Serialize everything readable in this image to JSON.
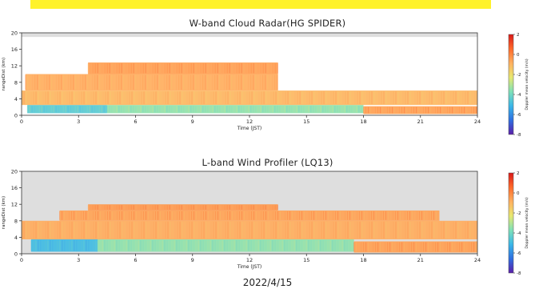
{
  "banner": {
    "text": ""
  },
  "date": "2022/4/15",
  "colors": {
    "missing": "#dedede",
    "colormap": [
      "#5a1ea8",
      "#2f6fe0",
      "#3ab7e8",
      "#7fe0b8",
      "#e8e870",
      "#ffb060",
      "#ff6a2a",
      "#d81818"
    ]
  },
  "chart_data": [
    {
      "type": "heatmap",
      "title": "W-band Cloud Radar(HG SPIDER)",
      "xlabel": "Time (JST)",
      "ylabel": "rangeDist (km)",
      "x_ticks": [
        "0",
        "3",
        "6",
        "9",
        "12",
        "15",
        "18",
        "21",
        "24"
      ],
      "y_ticks": [
        "0",
        "4",
        "8",
        "12",
        "16",
        "20"
      ],
      "xlim": [
        0,
        24
      ],
      "ylim": [
        0,
        20
      ],
      "colorbar": {
        "label": "Doppler mean velocity (m/s)",
        "ticks": [
          "2",
          "0",
          "-2",
          "-4",
          "-6",
          "-8"
        ],
        "range": [
          -8,
          2
        ]
      },
      "layers": [
        {
          "x": [
            0.3,
            4.5
          ],
          "y": [
            0.5,
            2.5
          ],
          "value": -4.5
        },
        {
          "x": [
            4.5,
            18.0
          ],
          "y": [
            0.5,
            2.5
          ],
          "value": -3.5
        },
        {
          "x": [
            18.0,
            24.0
          ],
          "y": [
            0.3,
            2.2
          ],
          "value": -0.5
        },
        {
          "x": [
            0.0,
            24.0
          ],
          "y": [
            2.5,
            6.0
          ],
          "value": -1.0
        },
        {
          "x": [
            0.2,
            13.5
          ],
          "y": [
            6.0,
            10.0
          ],
          "value": -0.8
        },
        {
          "x": [
            3.5,
            13.5
          ],
          "y": [
            10.0,
            12.8
          ],
          "value": -0.5
        }
      ]
    },
    {
      "type": "heatmap",
      "title": "L-band Wind Profiler (LQ13)",
      "xlabel": "Time (JST)",
      "ylabel": "rangeDist (km)",
      "x_ticks": [
        "0",
        "3",
        "6",
        "9",
        "12",
        "15",
        "18",
        "21",
        "24"
      ],
      "y_ticks": [
        "0",
        "4",
        "8",
        "12",
        "16",
        "20"
      ],
      "xlim": [
        0,
        24
      ],
      "ylim": [
        0,
        20
      ],
      "colorbar": {
        "label": "Doppler mean velocity (m/s)",
        "ticks": [
          "2",
          "0",
          "-2",
          "-4",
          "-6",
          "-8"
        ],
        "range": [
          -8,
          2
        ]
      },
      "layers": [
        {
          "x": [
            0.5,
            4.0
          ],
          "y": [
            0.5,
            3.5
          ],
          "value": -5.0
        },
        {
          "x": [
            4.0,
            17.5
          ],
          "y": [
            0.5,
            3.5
          ],
          "value": -3.5
        },
        {
          "x": [
            17.5,
            24.0
          ],
          "y": [
            0.3,
            3.0
          ],
          "value": -0.5
        },
        {
          "x": [
            0.0,
            24.0
          ],
          "y": [
            3.5,
            8.0
          ],
          "value": -0.8
        },
        {
          "x": [
            2.0,
            22.0
          ],
          "y": [
            8.0,
            10.5
          ],
          "value": -0.6
        },
        {
          "x": [
            3.5,
            13.5
          ],
          "y": [
            10.5,
            12.0
          ],
          "value": -0.4
        }
      ]
    }
  ]
}
